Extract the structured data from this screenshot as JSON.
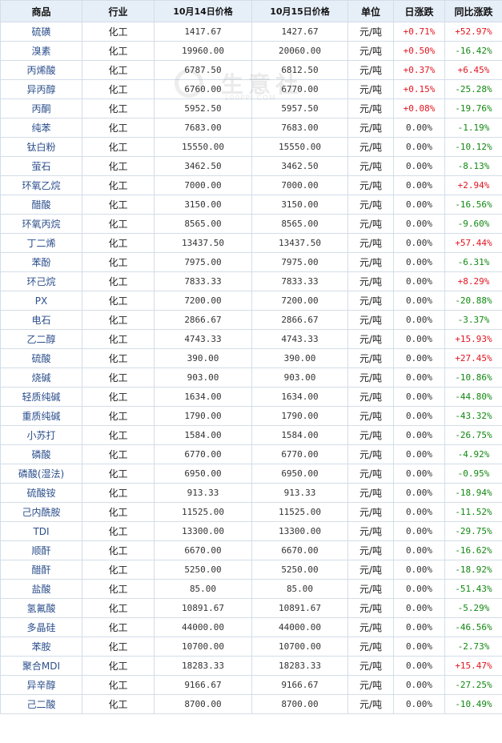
{
  "table": {
    "headers": [
      "商品",
      "行业",
      "10月14日价格",
      "10月15日价格",
      "单位",
      "日涨跌",
      "同比涨跌"
    ],
    "rows": [
      {
        "name": "硫磺",
        "industry": "化工",
        "p1": "1417.67",
        "p2": "1427.67",
        "unit": "元/吨",
        "day": "+0.71%",
        "yoy": "+52.97%"
      },
      {
        "name": "溴素",
        "industry": "化工",
        "p1": "19960.00",
        "p2": "20060.00",
        "unit": "元/吨",
        "day": "+0.50%",
        "yoy": "-16.42%"
      },
      {
        "name": "丙烯酸",
        "industry": "化工",
        "p1": "6787.50",
        "p2": "6812.50",
        "unit": "元/吨",
        "day": "+0.37%",
        "yoy": "+6.45%"
      },
      {
        "name": "异丙醇",
        "industry": "化工",
        "p1": "6760.00",
        "p2": "6770.00",
        "unit": "元/吨",
        "day": "+0.15%",
        "yoy": "-25.28%"
      },
      {
        "name": "丙酮",
        "industry": "化工",
        "p1": "5952.50",
        "p2": "5957.50",
        "unit": "元/吨",
        "day": "+0.08%",
        "yoy": "-19.76%"
      },
      {
        "name": "纯苯",
        "industry": "化工",
        "p1": "7683.00",
        "p2": "7683.00",
        "unit": "元/吨",
        "day": "0.00%",
        "yoy": "-1.19%"
      },
      {
        "name": "钛白粉",
        "industry": "化工",
        "p1": "15550.00",
        "p2": "15550.00",
        "unit": "元/吨",
        "day": "0.00%",
        "yoy": "-10.12%"
      },
      {
        "name": "萤石",
        "industry": "化工",
        "p1": "3462.50",
        "p2": "3462.50",
        "unit": "元/吨",
        "day": "0.00%",
        "yoy": "-8.13%"
      },
      {
        "name": "环氧乙烷",
        "industry": "化工",
        "p1": "7000.00",
        "p2": "7000.00",
        "unit": "元/吨",
        "day": "0.00%",
        "yoy": "+2.94%"
      },
      {
        "name": "醋酸",
        "industry": "化工",
        "p1": "3150.00",
        "p2": "3150.00",
        "unit": "元/吨",
        "day": "0.00%",
        "yoy": "-16.56%"
      },
      {
        "name": "环氧丙烷",
        "industry": "化工",
        "p1": "8565.00",
        "p2": "8565.00",
        "unit": "元/吨",
        "day": "0.00%",
        "yoy": "-9.60%"
      },
      {
        "name": "丁二烯",
        "industry": "化工",
        "p1": "13437.50",
        "p2": "13437.50",
        "unit": "元/吨",
        "day": "0.00%",
        "yoy": "+57.44%"
      },
      {
        "name": "苯酚",
        "industry": "化工",
        "p1": "7975.00",
        "p2": "7975.00",
        "unit": "元/吨",
        "day": "0.00%",
        "yoy": "-6.31%"
      },
      {
        "name": "环己烷",
        "industry": "化工",
        "p1": "7833.33",
        "p2": "7833.33",
        "unit": "元/吨",
        "day": "0.00%",
        "yoy": "+8.29%"
      },
      {
        "name": "PX",
        "industry": "化工",
        "p1": "7200.00",
        "p2": "7200.00",
        "unit": "元/吨",
        "day": "0.00%",
        "yoy": "-20.88%"
      },
      {
        "name": "电石",
        "industry": "化工",
        "p1": "2866.67",
        "p2": "2866.67",
        "unit": "元/吨",
        "day": "0.00%",
        "yoy": "-3.37%"
      },
      {
        "name": "乙二醇",
        "industry": "化工",
        "p1": "4743.33",
        "p2": "4743.33",
        "unit": "元/吨",
        "day": "0.00%",
        "yoy": "+15.93%"
      },
      {
        "name": "硫酸",
        "industry": "化工",
        "p1": "390.00",
        "p2": "390.00",
        "unit": "元/吨",
        "day": "0.00%",
        "yoy": "+27.45%"
      },
      {
        "name": "烧碱",
        "industry": "化工",
        "p1": "903.00",
        "p2": "903.00",
        "unit": "元/吨",
        "day": "0.00%",
        "yoy": "-10.86%"
      },
      {
        "name": "轻质纯碱",
        "industry": "化工",
        "p1": "1634.00",
        "p2": "1634.00",
        "unit": "元/吨",
        "day": "0.00%",
        "yoy": "-44.80%"
      },
      {
        "name": "重质纯碱",
        "industry": "化工",
        "p1": "1790.00",
        "p2": "1790.00",
        "unit": "元/吨",
        "day": "0.00%",
        "yoy": "-43.32%"
      },
      {
        "name": "小苏打",
        "industry": "化工",
        "p1": "1584.00",
        "p2": "1584.00",
        "unit": "元/吨",
        "day": "0.00%",
        "yoy": "-26.75%"
      },
      {
        "name": "磷酸",
        "industry": "化工",
        "p1": "6770.00",
        "p2": "6770.00",
        "unit": "元/吨",
        "day": "0.00%",
        "yoy": "-4.92%"
      },
      {
        "name": "磷酸(湿法)",
        "industry": "化工",
        "p1": "6950.00",
        "p2": "6950.00",
        "unit": "元/吨",
        "day": "0.00%",
        "yoy": "-0.95%"
      },
      {
        "name": "硫酸铵",
        "industry": "化工",
        "p1": "913.33",
        "p2": "913.33",
        "unit": "元/吨",
        "day": "0.00%",
        "yoy": "-18.94%"
      },
      {
        "name": "己内酰胺",
        "industry": "化工",
        "p1": "11525.00",
        "p2": "11525.00",
        "unit": "元/吨",
        "day": "0.00%",
        "yoy": "-11.52%"
      },
      {
        "name": "TDI",
        "industry": "化工",
        "p1": "13300.00",
        "p2": "13300.00",
        "unit": "元/吨",
        "day": "0.00%",
        "yoy": "-29.75%"
      },
      {
        "name": "顺酐",
        "industry": "化工",
        "p1": "6670.00",
        "p2": "6670.00",
        "unit": "元/吨",
        "day": "0.00%",
        "yoy": "-16.62%"
      },
      {
        "name": "醋酐",
        "industry": "化工",
        "p1": "5250.00",
        "p2": "5250.00",
        "unit": "元/吨",
        "day": "0.00%",
        "yoy": "-18.92%"
      },
      {
        "name": "盐酸",
        "industry": "化工",
        "p1": "85.00",
        "p2": "85.00",
        "unit": "元/吨",
        "day": "0.00%",
        "yoy": "-51.43%"
      },
      {
        "name": "氢氟酸",
        "industry": "化工",
        "p1": "10891.67",
        "p2": "10891.67",
        "unit": "元/吨",
        "day": "0.00%",
        "yoy": "-5.29%"
      },
      {
        "name": "多晶硅",
        "industry": "化工",
        "p1": "44000.00",
        "p2": "44000.00",
        "unit": "元/吨",
        "day": "0.00%",
        "yoy": "-46.56%"
      },
      {
        "name": "苯胺",
        "industry": "化工",
        "p1": "10700.00",
        "p2": "10700.00",
        "unit": "元/吨",
        "day": "0.00%",
        "yoy": "-2.73%"
      },
      {
        "name": "聚合MDI",
        "industry": "化工",
        "p1": "18283.33",
        "p2": "18283.33",
        "unit": "元/吨",
        "day": "0.00%",
        "yoy": "+15.47%"
      },
      {
        "name": "异辛醇",
        "industry": "化工",
        "p1": "9166.67",
        "p2": "9166.67",
        "unit": "元/吨",
        "day": "0.00%",
        "yoy": "-27.25%"
      },
      {
        "name": "己二酸",
        "industry": "化工",
        "p1": "8700.00",
        "p2": "8700.00",
        "unit": "元/吨",
        "day": "0.00%",
        "yoy": "-10.49%"
      }
    ]
  },
  "watermark": {
    "text": "生意社",
    "url": "100PPI.COM"
  },
  "colors": {
    "positive": "#e0141e",
    "negative": "#118811",
    "name_link": "#2c4f8c",
    "header_bg": "#e6eef8"
  }
}
